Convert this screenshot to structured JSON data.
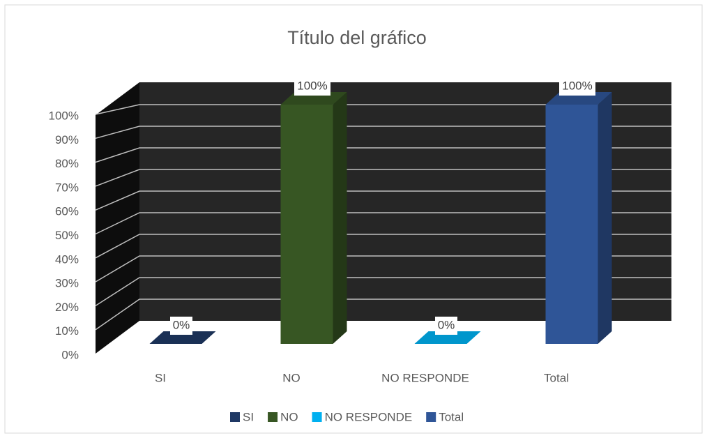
{
  "chart_data": {
    "type": "bar3d",
    "title": "Título del gráfico",
    "categories": [
      "SI",
      "NO",
      "NO RESPONDE",
      "Total"
    ],
    "values": [
      0,
      100,
      0,
      100
    ],
    "value_labels": [
      "0%",
      "100%",
      "0%",
      "100%"
    ],
    "colors": [
      "#1f3864",
      "#375623",
      "#00b0f0",
      "#2f5597"
    ],
    "ylim": [
      0,
      100
    ],
    "yticks": [
      {
        "value": 0,
        "label": "0%"
      },
      {
        "value": 10,
        "label": "10%"
      },
      {
        "value": 20,
        "label": "20%"
      },
      {
        "value": 30,
        "label": "30%"
      },
      {
        "value": 40,
        "label": "40%"
      },
      {
        "value": 50,
        "label": "50%"
      },
      {
        "value": 60,
        "label": "60%"
      },
      {
        "value": 70,
        "label": "70%"
      },
      {
        "value": 80,
        "label": "80%"
      },
      {
        "value": 90,
        "label": "90%"
      },
      {
        "value": 100,
        "label": "100%"
      }
    ],
    "grid": true,
    "legend": "bottom"
  }
}
